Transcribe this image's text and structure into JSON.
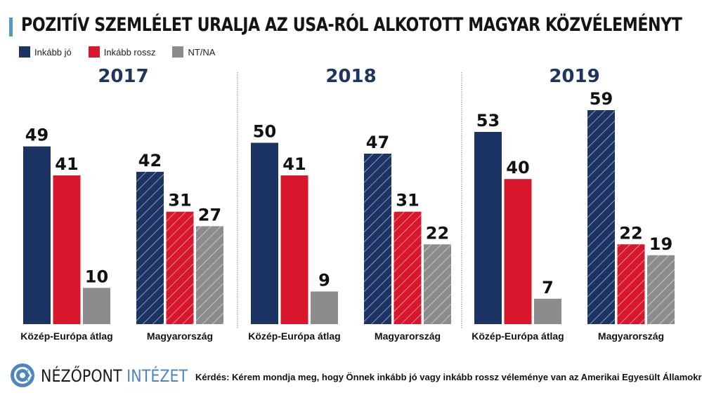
{
  "header": {
    "title": "POZITÍV SZEMLÉLET URALJA AZ USA-RÓL ALKOTOTT MAGYAR KÖZVÉLEMÉNYT"
  },
  "legend": [
    {
      "label": "Inkább jó",
      "color": "#1b3463"
    },
    {
      "label": "Inkább rossz",
      "color": "#d8172d"
    },
    {
      "label": "NT/NA",
      "color": "#8c8c8c"
    }
  ],
  "footer": {
    "brand_part1": "NÉZŐPONT",
    "brand_part2": "INTÉZET",
    "question": "Kérdés: Kérem mondja meg, hogy Önnek inkább jó vagy inkább rossz véleménye van az Amerikai Egyesült Államokról!"
  },
  "chart_data": {
    "type": "bar",
    "title": "POZITÍV SZEMLÉLET URALJA AZ USA-RÓL ALKOTOTT MAGYAR KÖZVÉLEMÉNYT",
    "xlabel": "",
    "ylabel": "",
    "ylim": [
      0,
      60
    ],
    "grid": false,
    "legend_position": "top-left",
    "series_names": [
      "Inkább jó",
      "Inkább rossz",
      "NT/NA"
    ],
    "series_colors": [
      "#1b3463",
      "#d8172d",
      "#8c8c8c"
    ],
    "panels": [
      {
        "year": "2017",
        "categories": [
          "Közép-Európa átlag",
          "Magyarország"
        ],
        "groups": [
          {
            "category": "Közép-Európa átlag",
            "hatched": false,
            "values": [
              49,
              41,
              10
            ]
          },
          {
            "category": "Magyarország",
            "hatched": true,
            "values": [
              42,
              31,
              27
            ]
          }
        ]
      },
      {
        "year": "2018",
        "categories": [
          "Közép-Európa átlag",
          "Magyarország"
        ],
        "groups": [
          {
            "category": "Közép-Európa átlag",
            "hatched": false,
            "values": [
              50,
              41,
              9
            ]
          },
          {
            "category": "Magyarország",
            "hatched": true,
            "values": [
              47,
              31,
              22
            ]
          }
        ]
      },
      {
        "year": "2019",
        "categories": [
          "Közép-Európa átlag",
          "Magyarország"
        ],
        "groups": [
          {
            "category": "Közép-Európa átlag",
            "hatched": false,
            "values": [
              53,
              40,
              7
            ]
          },
          {
            "category": "Magyarország",
            "hatched": true,
            "values": [
              59,
              22,
              19
            ]
          }
        ]
      }
    ]
  }
}
